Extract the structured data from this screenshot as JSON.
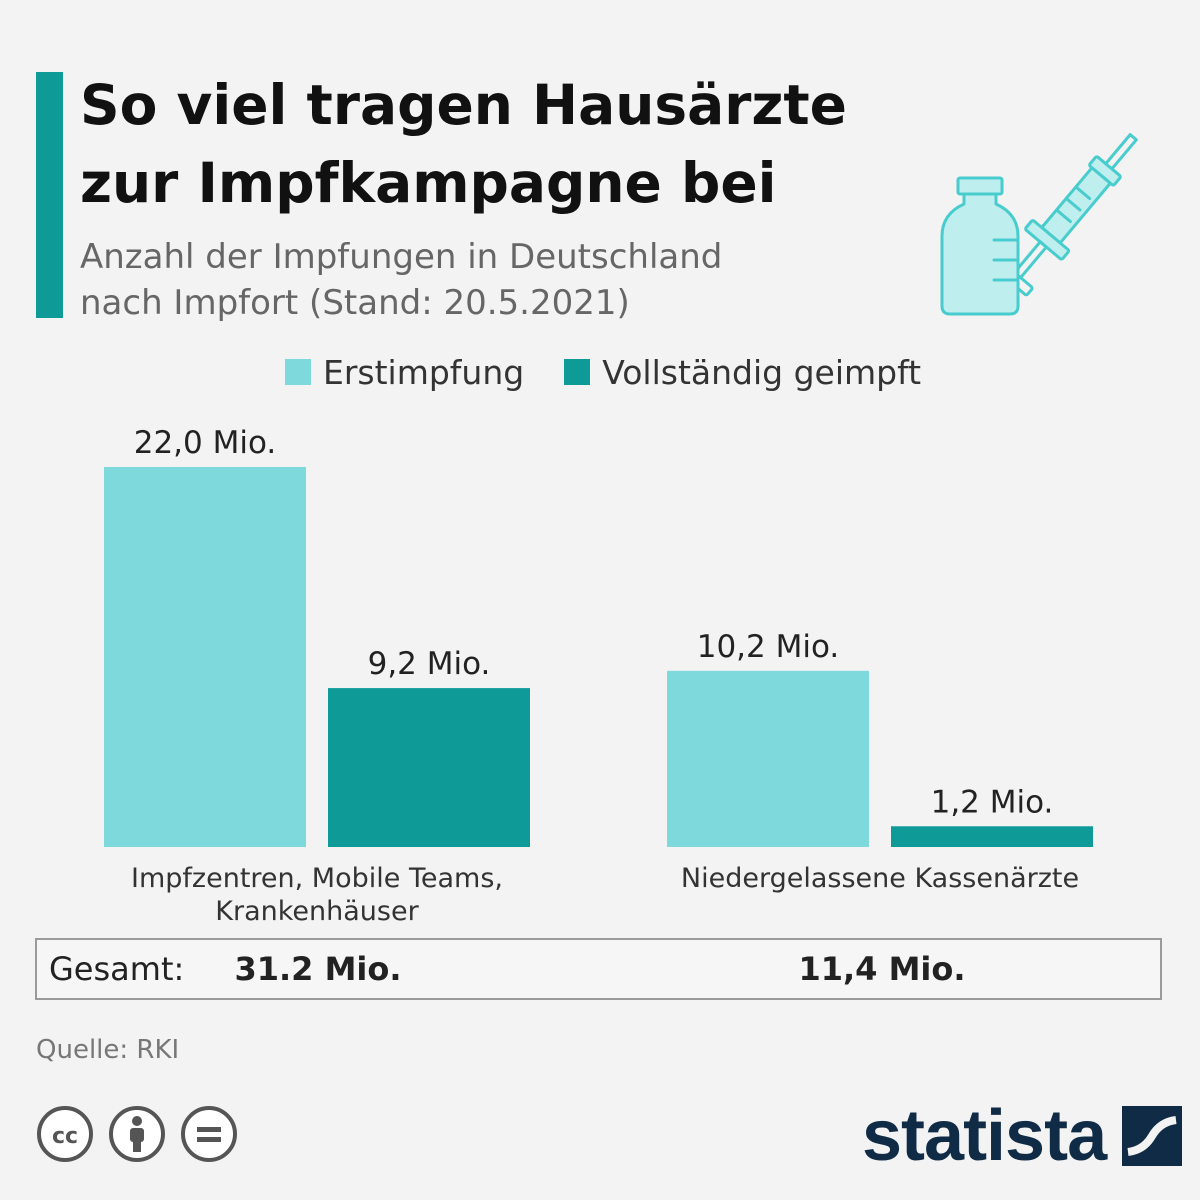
{
  "title": {
    "line1": "So viel tragen Hausärzte",
    "line2": "zur Impfkampagne bei"
  },
  "subtitle": {
    "line1": "Anzahl der Impfungen in Deutschland",
    "line2": "nach Impfort (Stand: 20.5.2021)"
  },
  "illustration": {
    "icon": "vaccine-vial-and-syringe"
  },
  "colors": {
    "erstimpfung": "#7dd9db",
    "vollstaendig": "#0e9a97",
    "accent": "#0e9a97",
    "brand": "#0f2b46"
  },
  "chart_data": {
    "type": "bar",
    "categories": [
      [
        "Impfzentren, Mobile Teams,",
        "Krankenhäuser"
      ],
      [
        "Niedergelassene Kassenärzte"
      ]
    ],
    "series": [
      {
        "name": "Erstimpfung",
        "values": [
          22.0,
          10.2
        ],
        "labels": [
          "22,0 Mio.",
          "10,2 Mio."
        ]
      },
      {
        "name": "Vollständig geimpft",
        "values": [
          9.2,
          1.2
        ],
        "labels": [
          "9,2 Mio.",
          "1,2 Mio."
        ]
      }
    ],
    "ylim": [
      0,
      22
    ],
    "unit": "Mio.",
    "grid": false,
    "legend_position": "top"
  },
  "totals": {
    "label": "Gesamt:",
    "values": [
      "31.2 Mio.",
      "11,4 Mio."
    ]
  },
  "source": "Quelle: RKI",
  "license_icons": [
    "cc-icon",
    "by-attribution-icon",
    "nd-equals-icon"
  ],
  "brand": {
    "name": "statista"
  }
}
